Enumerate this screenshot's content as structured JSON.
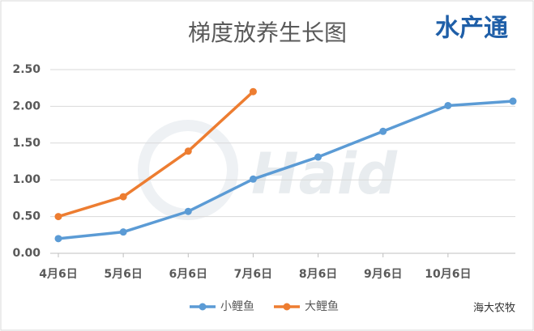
{
  "chart_data": {
    "type": "line",
    "title": "梯度放养生长图",
    "logo": "水产通",
    "watermark": "Haid",
    "source": "海大农牧",
    "categories": [
      "4月6日",
      "5月6日",
      "6月6日",
      "7月6日",
      "8月6日",
      "9月6日",
      "10月6日",
      null
    ],
    "series": [
      {
        "name": "小鲤鱼",
        "color": "#5b9bd5",
        "values": [
          0.2,
          0.29,
          0.57,
          1.01,
          1.31,
          1.66,
          2.01,
          2.07
        ]
      },
      {
        "name": "大鲤鱼",
        "color": "#ed7d31",
        "values": [
          0.5,
          0.77,
          1.39,
          2.2,
          null,
          null,
          null,
          null
        ]
      }
    ],
    "ylim": [
      0,
      2.5
    ],
    "yticks": [
      {
        "value": 0,
        "label": "0.00"
      },
      {
        "value": 0.5,
        "label": "0.50"
      },
      {
        "value": 1,
        "label": "1.00"
      },
      {
        "value": 1.5,
        "label": "1.50"
      },
      {
        "value": 2,
        "label": "2.00"
      },
      {
        "value": 2.5,
        "label": "2.50"
      }
    ],
    "grid": true,
    "legend": "bottom"
  }
}
